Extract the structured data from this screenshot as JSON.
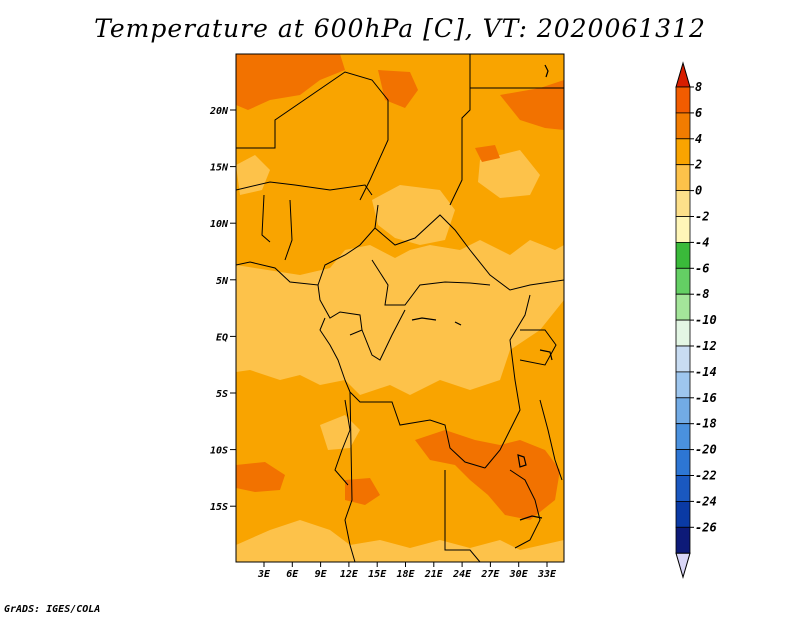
{
  "title": "Temperature at 600hPa [C], VT: 2020061312",
  "footer": "GrADS: IGES/COLA",
  "map": {
    "lon_labels": [
      "3E",
      "6E",
      "9E",
      "12E",
      "15E",
      "18E",
      "21E",
      "24E",
      "27E",
      "30E",
      "33E"
    ],
    "lat_labels": [
      "20N",
      "15N",
      "10N",
      "5N",
      "EQ",
      "5S",
      "10S",
      "15S"
    ],
    "field_colors": {
      "c0_2": "#fdc24a",
      "c2_4": "#f9a400",
      "c4_6": "#f27200",
      "ocean_edge": "#fdc24a"
    }
  },
  "colorbar": {
    "labels": [
      "8",
      "6",
      "4",
      "2",
      "0",
      "-2",
      "-4",
      "-6",
      "-8",
      "-10",
      "-12",
      "-14",
      "-16",
      "-18",
      "-20",
      "-22",
      "-24",
      "-26"
    ],
    "colors": [
      "#e32a00",
      "#f25c00",
      "#f58a00",
      "#fbb83a",
      "#fdd476",
      "#fff3a6",
      "#3fc045",
      "#6fd470",
      "#a5e89f",
      "#dff5e0",
      "#c6dbf2",
      "#93c0ec",
      "#6aa8e6",
      "#3b8ddf",
      "#1c6fd3",
      "#0f52b9",
      "#08309a",
      "#0b1470",
      "#d8d4f7"
    ],
    "bands": [
      {
        "color": "#f25c00"
      },
      {
        "color": "#f27c00"
      },
      {
        "color": "#f9a400"
      },
      {
        "color": "#fdc24a"
      },
      {
        "color": "#fde08a"
      },
      {
        "color": "#fff6b8"
      },
      {
        "color": "#3aba3a"
      },
      {
        "color": "#64cf64"
      },
      {
        "color": "#a4e59a"
      },
      {
        "color": "#e3f6e4"
      },
      {
        "color": "#c8dcf2"
      },
      {
        "color": "#9ec6ee"
      },
      {
        "color": "#72abe5"
      },
      {
        "color": "#4a91de"
      },
      {
        "color": "#2d76d4"
      },
      {
        "color": "#1a58c0"
      },
      {
        "color": "#0a3aa5"
      },
      {
        "color": "#0d1a78"
      }
    ],
    "top_cap_color": "#d81e00",
    "bottom_cap_color": "#d9d6f7"
  }
}
